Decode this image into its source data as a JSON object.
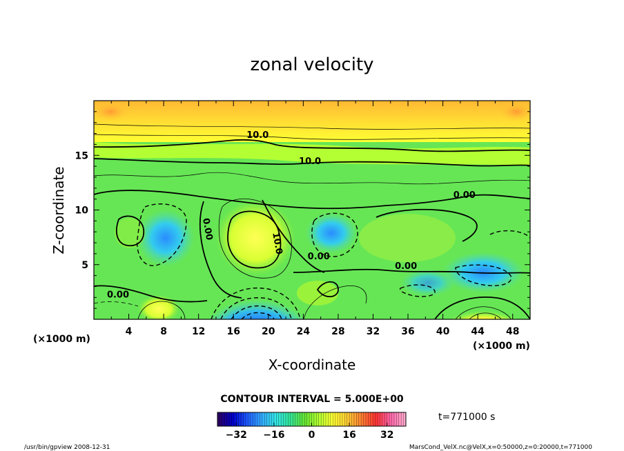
{
  "chart_data": {
    "type": "heatmap",
    "title": "zonal velocity",
    "xlabel": "X-coordinate",
    "ylabel": "Z-coordinate",
    "x_unit": "(×1000 m)",
    "y_unit": "(×1000 m)",
    "xlim": [
      0,
      50
    ],
    "ylim": [
      0,
      20
    ],
    "x_ticks": [
      4,
      8,
      12,
      16,
      20,
      24,
      28,
      32,
      36,
      40,
      44,
      48
    ],
    "y_ticks": [
      5,
      10,
      15
    ],
    "contour_interval_text": "CONTOUR INTERVAL = 5.000E+00",
    "contour_labels": [
      {
        "text": "10.0",
        "x": 17.5,
        "z": 16.6
      },
      {
        "text": "10.0",
        "x": 23.5,
        "z": 14.2
      },
      {
        "text": "0.00",
        "x": 41.2,
        "z": 11.1
      },
      {
        "text": "0.00",
        "x": 12.5,
        "z": 9.2,
        "rotated": true
      },
      {
        "text": "10.0",
        "x": 20.5,
        "z": 7.9,
        "rotated": true
      },
      {
        "text": "0.00",
        "x": 24.5,
        "z": 5.5
      },
      {
        "text": "0.00",
        "x": 34.5,
        "z": 4.6
      },
      {
        "text": "0.00",
        "x": 1.5,
        "z": 2.0
      }
    ],
    "colorbar": {
      "min": -40,
      "max": 40,
      "ticks": [
        -32,
        -16,
        0,
        16,
        32
      ],
      "colors": [
        "#2b0066",
        "#0000cc",
        "#1e5bff",
        "#33aaff",
        "#33e6e6",
        "#33e699",
        "#66e633",
        "#b3ff33",
        "#ffff33",
        "#ffcc33",
        "#ff8033",
        "#ff3333",
        "#ff66aa",
        "#ffaacc"
      ]
    },
    "time_label": "t=771000 s",
    "features": [
      {
        "kind": "max",
        "x": 19.5,
        "z": 8.0,
        "value_hint": "positive"
      },
      {
        "kind": "min",
        "x": 27.0,
        "z": 8.0,
        "value_hint": "negative"
      },
      {
        "kind": "min",
        "x": 19.0,
        "z": 0.5,
        "value_hint": "strong negative"
      },
      {
        "kind": "max",
        "x": 44.5,
        "z": 0.3,
        "value_hint": "strong positive"
      },
      {
        "kind": "min",
        "x": 7.5,
        "z": 6.5,
        "value_hint": "negative"
      },
      {
        "kind": "max",
        "x": 5.0,
        "z": 8.0,
        "value_hint": "positive"
      }
    ]
  },
  "footer": {
    "left": "/usr/bin/gpview   2008-12-31",
    "right": "MarsCond_VelX.nc@VelX,x=0:50000,z=0:20000,t=771000"
  }
}
